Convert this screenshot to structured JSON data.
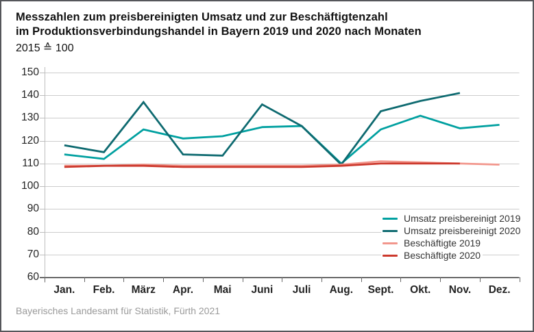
{
  "header": {
    "title_line1": "Messzahlen zum preisbereinigten Umsatz und zur Beschäftigtenzahl",
    "title_line2": "im Produktionsverbindungshandel in Bayern 2019 und 2020 nach Monaten",
    "subtitle": "2015 ≙ 100"
  },
  "footer": {
    "source": "Bayerisches Landesamt für Statistik, Fürth 2021"
  },
  "chart_data": {
    "type": "line",
    "title": "Messzahlen zum preisbereinigten Umsatz und zur Beschäftigtenzahl im Produktionsverbindungshandel in Bayern 2019 und 2020 nach Monaten",
    "unit_note": "2015 ≙ 100",
    "categories": [
      "Jan.",
      "Feb.",
      "März",
      "Apr.",
      "Mai",
      "Juni",
      "Juli",
      "Aug.",
      "Sept.",
      "Okt.",
      "Nov.",
      "Dez."
    ],
    "yticks": [
      60,
      70,
      80,
      90,
      100,
      110,
      120,
      130,
      140,
      150
    ],
    "ylim": [
      60,
      150
    ],
    "grid": "horizontal",
    "legend_position": "inside-bottom-right",
    "series": [
      {
        "name": "Umsatz preisbereinigt 2019",
        "color": "#00A0A0",
        "values": [
          114,
          112,
          125,
          121,
          122,
          126,
          126.5,
          110,
          125,
          131,
          125.5,
          127
        ]
      },
      {
        "name": "Umsatz preisbereinigt 2020",
        "color": "#0E6A70",
        "values": [
          118,
          115,
          137,
          114,
          113.5,
          136,
          126.5,
          109.5,
          133,
          137.5,
          141,
          null
        ]
      },
      {
        "name": "Beschäftigte 2019",
        "color": "#F2968C",
        "values": [
          109,
          109,
          109.5,
          109,
          109,
          109,
          109,
          109.5,
          111,
          110.5,
          110,
          109.5
        ]
      },
      {
        "name": "Beschäftigte 2020",
        "color": "#CC382C",
        "values": [
          108.5,
          109,
          109,
          108.5,
          108.5,
          108.5,
          108.5,
          109,
          110,
          110,
          110,
          null
        ]
      }
    ],
    "colors": {
      "gridline": "#cccccc",
      "y_spine": "#bdbdbd",
      "x_spine": "#2e2e2e",
      "axis_text": "#222222",
      "footer_text": "#9a9a9a"
    }
  }
}
